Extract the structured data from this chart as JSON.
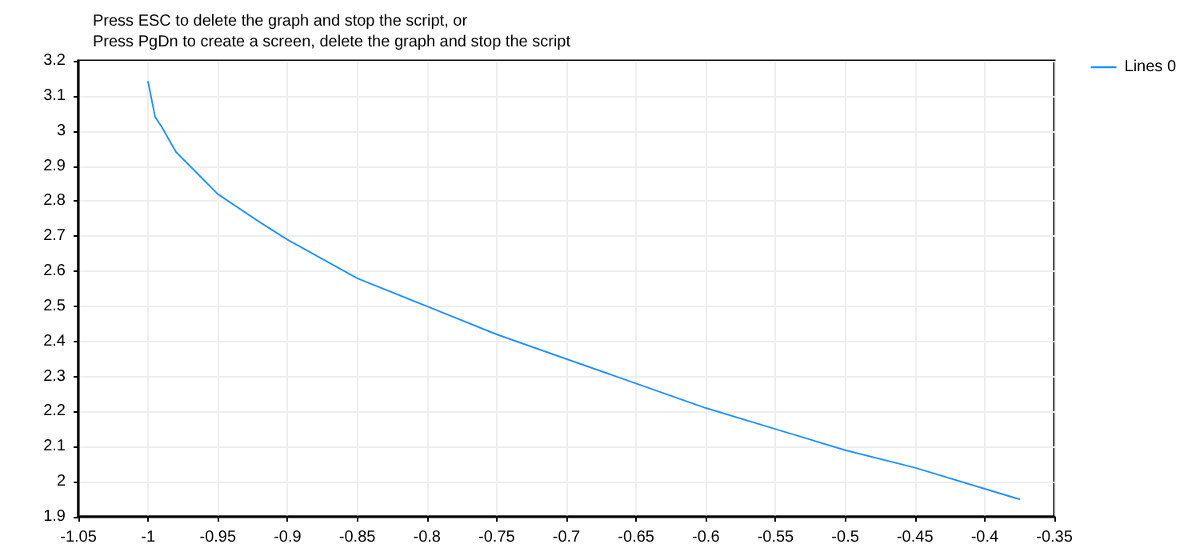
{
  "chart_data": {
    "type": "line",
    "title": "Press ESC to delete the graph and stop the script, or\nPress PgDn to create a screen, delete the graph and stop the script",
    "x": [
      -1,
      -0.995,
      -0.99,
      -0.98,
      -0.97,
      -0.95,
      -0.92,
      -0.9,
      -0.85,
      -0.8,
      -0.75,
      -0.7,
      -0.65,
      -0.6,
      -0.55,
      -0.5,
      -0.45,
      -0.4,
      -0.375
    ],
    "series": [
      {
        "name": "Lines 0",
        "color": "#1e90ff",
        "values": [
          3.14,
          3.04,
          3.01,
          2.94,
          2.9,
          2.82,
          2.74,
          2.69,
          2.58,
          2.5,
          2.42,
          2.35,
          2.28,
          2.21,
          2.15,
          2.09,
          2.04,
          1.98,
          1.95
        ]
      }
    ],
    "xlim": [
      -1.05,
      -0.35
    ],
    "xticks": [
      -1.05,
      -1,
      -0.95,
      -0.9,
      -0.85,
      -0.8,
      -0.75,
      -0.7,
      -0.65,
      -0.6,
      -0.55,
      -0.5,
      -0.45,
      -0.4,
      -0.35
    ],
    "ylim": [
      1.9,
      3.2
    ],
    "yticks": [
      1.9,
      2,
      2.1,
      2.2,
      2.3,
      2.4,
      2.5,
      2.6,
      2.7,
      2.8,
      2.9,
      3,
      3.1,
      3.2
    ],
    "grid": true,
    "legend": "right",
    "marker": "none",
    "line_style": "solid"
  }
}
